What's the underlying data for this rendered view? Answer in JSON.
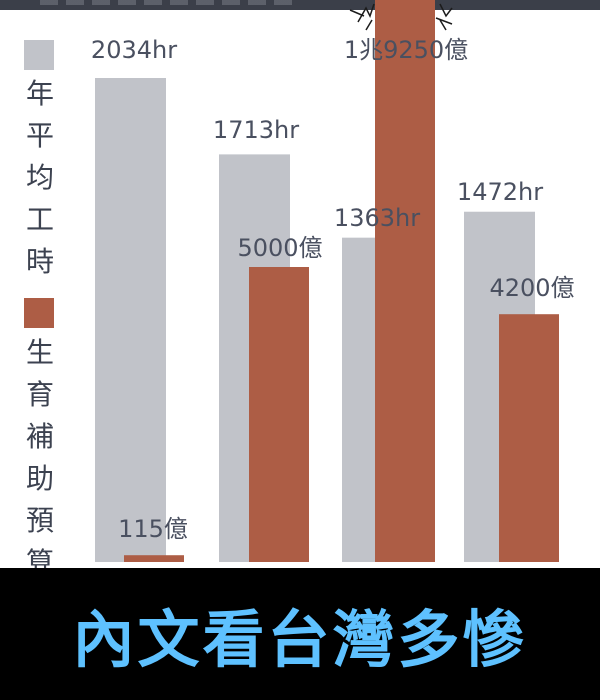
{
  "chart_data": {
    "type": "bar",
    "categories": [
      "",
      "",
      "",
      ""
    ],
    "series": [
      {
        "name": "年平均工時",
        "color": "#c1c3c9",
        "values": [
          2034,
          1713,
          1363,
          1472
        ],
        "labels": [
          "2034hr",
          "1713hr",
          "1363hr",
          "1472hr"
        ]
      },
      {
        "name": "生育補助預算",
        "color": "#ad5d45",
        "values": [
          115,
          5000,
          19250,
          4200
        ],
        "labels": [
          "115億",
          "5000億",
          "1兆9250億",
          "4200億"
        ]
      }
    ],
    "legend_position": "left-vertical",
    "grid": false
  },
  "footer": {
    "text": "內文看台灣多慘"
  }
}
